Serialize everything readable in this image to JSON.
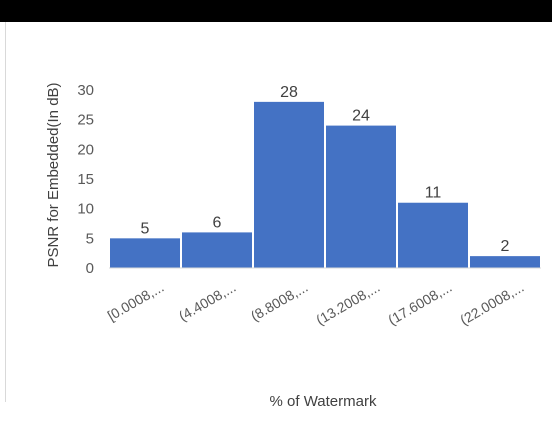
{
  "chart_data": {
    "type": "bar",
    "title": "",
    "xlabel": "% of Watermark",
    "ylabel": "PSNR for Embedded(In dB)",
    "categories": [
      "[0.0008,...",
      "(4.4008,...",
      "(8.8008,...",
      "(13.2008,...",
      "(17.6008,...",
      "(22.0008,..."
    ],
    "values": [
      5,
      6,
      28,
      24,
      11,
      2
    ],
    "ylim": [
      0,
      30
    ],
    "yticks": [
      0,
      5,
      10,
      15,
      20,
      25,
      30
    ],
    "bar_color": "#4472c4",
    "grid": false,
    "legend": "none"
  }
}
